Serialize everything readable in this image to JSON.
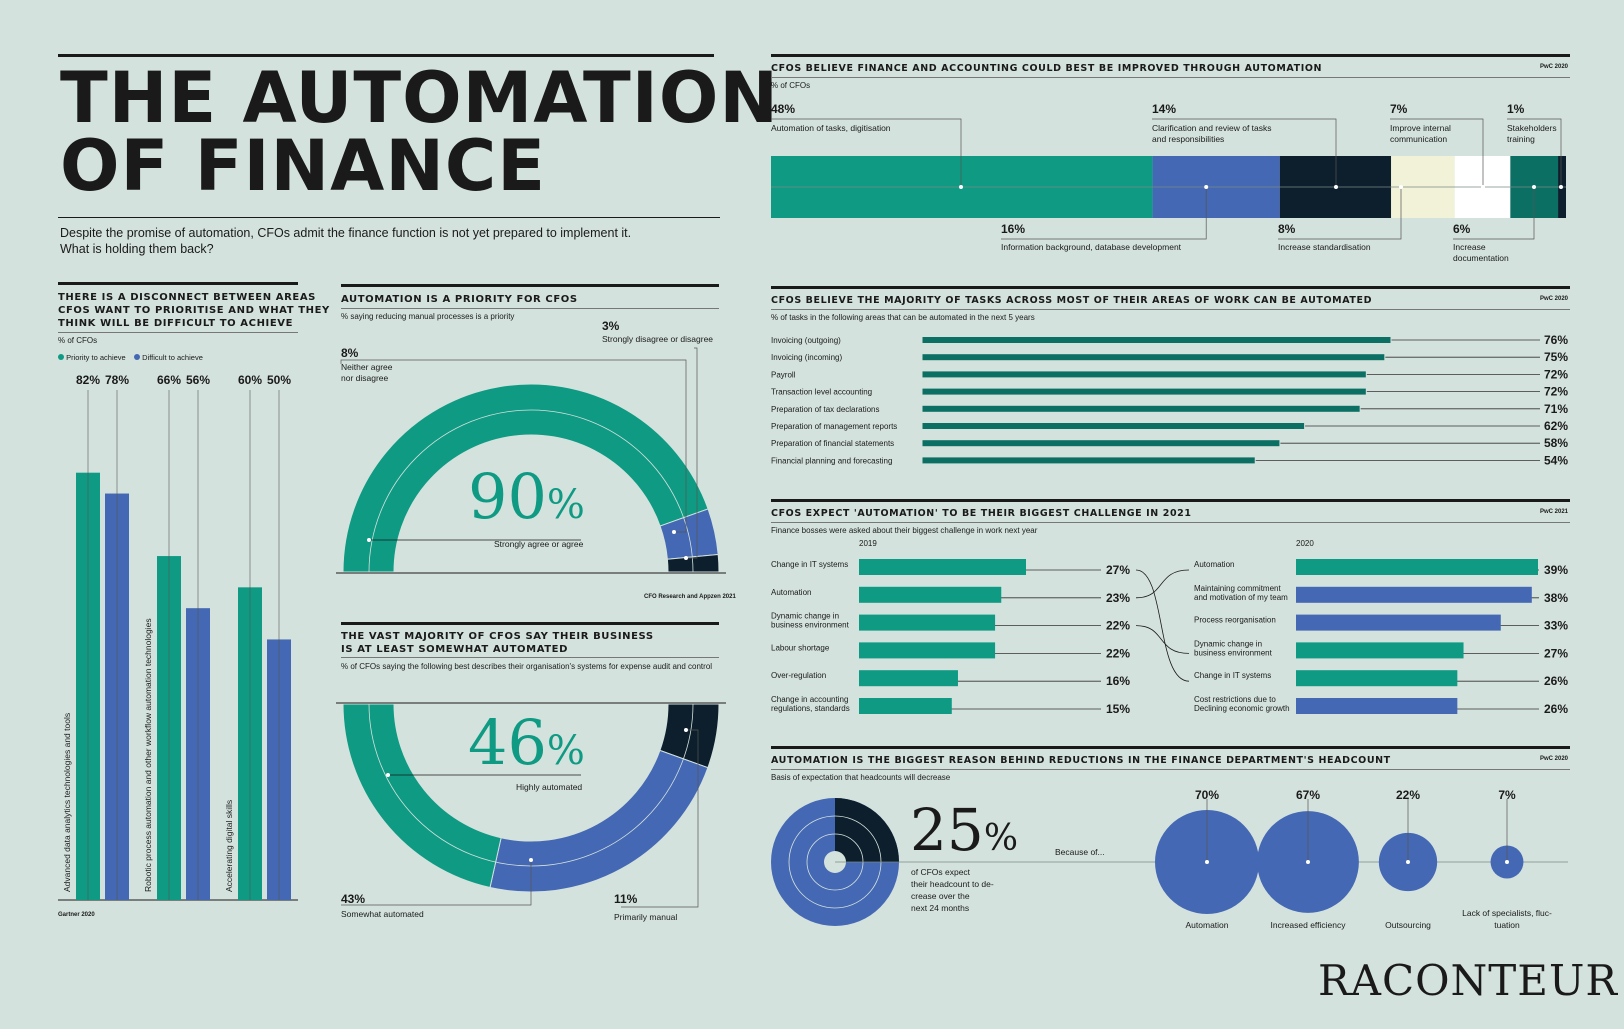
{
  "header": {
    "title_line1": "THE AUTOMATION",
    "title_line2": "OF FINANCE",
    "intro_line1": "Despite the promise of automation, CFOs admit the finance function is not yet prepared to implement it.",
    "intro_line2": "What is holding them back?"
  },
  "colors": {
    "teal": "#0e9a83",
    "blue": "#4468b3",
    "navy": "#0d1f2d",
    "cream": "#f2f2d8",
    "white": "#ffffff",
    "darkteal": "#0b6f63",
    "bg": "#d4e2dd"
  },
  "chart_data": [
    {
      "id": "disconnect",
      "type": "bar",
      "title_line1": "THERE IS A DISCONNECT BETWEEN AREAS",
      "title_line2": "CFOS WANT TO PRIORITISE AND WHAT THEY",
      "title_line3": "THINK WILL BE DIFFICULT TO ACHIEVE",
      "subtitle": "% of CFOs",
      "legend": [
        "Priority to achieve",
        "Difficult to achieve"
      ],
      "categories": [
        "Advanced data analytics technologies and tools",
        "Robotic process automation and other workflow automation technologies",
        "Accelerating digital skills"
      ],
      "series": [
        {
          "name": "Priority to achieve",
          "values": [
            82,
            66,
            60
          ]
        },
        {
          "name": "Difficult to achieve",
          "values": [
            78,
            56,
            50
          ]
        }
      ],
      "labels": [
        "82%",
        "78%",
        "66%",
        "56%",
        "60%",
        "50%"
      ],
      "source": "Gartner 2020"
    },
    {
      "id": "priority",
      "type": "pie",
      "title": "AUTOMATION IS A PRIORITY FOR CFOs",
      "subtitle": "% saying reducing manual processes is a priority",
      "slices": [
        {
          "label": "Strongly agree or agree",
          "value": 90
        },
        {
          "label": "Neither agree nor disagree",
          "value": 8
        },
        {
          "label": "Strongly disagree or disagree",
          "value": 3
        }
      ],
      "big_value": "90",
      "big_unit": "%",
      "big_label": "Strongly agree or agree",
      "neither_pct": "8%",
      "neither_l1": "Neither agree",
      "neither_l2": "nor disagree",
      "disagree_pct": "3%",
      "disagree_label": "Strongly disagree or disagree",
      "source": "CFO Research and Appzen 2021"
    },
    {
      "id": "automated",
      "type": "pie",
      "title_line1": "THE VAST MAJORITY OF CFOs SAY THEIR BUSINESS",
      "title_line2": "IS AT LEAST SOMEWHAT AUTOMATED",
      "subtitle": "% of CFOs saying the following best describes their organisation's systems for expense audit and control",
      "slices": [
        {
          "label": "Highly automated",
          "value": 46
        },
        {
          "label": "Somewhat automated",
          "value": 43
        },
        {
          "label": "Primarily manual",
          "value": 11
        }
      ],
      "big_value": "46",
      "big_unit": "%",
      "big_label": "Highly automated",
      "somewhat_pct": "43%",
      "somewhat_label": "Somewhat automated",
      "manual_pct": "11%",
      "manual_label": "Primarily manual"
    },
    {
      "id": "improved",
      "type": "bar",
      "title": "CFOs BELIEVE FINANCE AND ACCOUNTING COULD BEST BE IMPROVED THROUGH AUTOMATION",
      "subtitle": "% of CFOs",
      "source": "PwC 2020",
      "segments": [
        {
          "label": "Automation of tasks, digitisation",
          "value": 48,
          "text": "48%"
        },
        {
          "label": "Information background, database development",
          "value": 16,
          "text": "16%"
        },
        {
          "label": "Clarification and review of tasks and responsibilities",
          "value": 14,
          "text": "14%"
        },
        {
          "label": "Increase standardisation",
          "value": 8,
          "text": "8%"
        },
        {
          "label": "Improve internal communication",
          "value": 7,
          "text": "7%"
        },
        {
          "label": "Increase documentation",
          "value": 6,
          "text": "6%"
        },
        {
          "label": "Stakeholders training",
          "value": 1,
          "text": "1%"
        }
      ],
      "l_clar1": "Clarification and review of tasks",
      "l_clar2": "and responsibilities",
      "l_impr1": "Improve internal",
      "l_impr2": "communication",
      "l_stak1": "Stakeholders",
      "l_stak2": "training",
      "l_doc1": "Increase",
      "l_doc2": "documentation"
    },
    {
      "id": "tasks",
      "type": "bar",
      "title": "CFOs BELIEVE THE MAJORITY OF TASKS ACROSS MOST OF THEIR AREAS OF WORK CAN BE AUTOMATED",
      "subtitle": "% of tasks in the following areas that can be automated in the next 5 years",
      "source": "PwC 2020",
      "categories": [
        "Invoicing (outgoing)",
        "Invoicing (incoming)",
        "Payroll",
        "Transaction level accounting",
        "Preparation of tax declarations",
        "Preparation of  management reports",
        "Preparation of financial statements",
        "Financial planning and forecasting"
      ],
      "values": [
        76,
        75,
        72,
        72,
        71,
        62,
        58,
        54
      ],
      "labels": [
        "76%",
        "75%",
        "72%",
        "72%",
        "71%",
        "62%",
        "58%",
        "54%"
      ]
    },
    {
      "id": "challenge",
      "type": "bar",
      "title": "CFOs EXPECT 'AUTOMATION' TO BE THEIR BIGGEST CHALLENGE IN 2021",
      "subtitle": "Finance bosses were asked about their biggest challenge in work next year",
      "source": "PwC 2021",
      "year1": "2019",
      "year2": "2020",
      "left": [
        {
          "label": "Change in IT systems",
          "value": 27,
          "text": "27%"
        },
        {
          "label": "Automation",
          "value": 23,
          "text": "23%"
        },
        {
          "l1": "Dynamic change in",
          "l2": "business environment",
          "value": 22,
          "text": "22%"
        },
        {
          "label": "Labour shortage",
          "value": 22,
          "text": "22%"
        },
        {
          "label": "Over-regulation",
          "value": 16,
          "text": "16%"
        },
        {
          "l1": "Change in accounting",
          "l2": "regulations, standards",
          "value": 15,
          "text": "15%"
        }
      ],
      "right": [
        {
          "label": "Automation",
          "value": 39,
          "text": "39%",
          "color": "teal"
        },
        {
          "l1": "Maintaining commitment",
          "l2": "and motivation of my team",
          "value": 38,
          "text": "38%",
          "color": "blue"
        },
        {
          "label": "Process reorganisation",
          "value": 33,
          "text": "33%",
          "color": "blue"
        },
        {
          "l1": "Dynamic change in",
          "l2": "business environment",
          "value": 27,
          "text": "27%",
          "color": "teal"
        },
        {
          "label": "Change in IT systems",
          "value": 26,
          "text": "26%",
          "color": "teal"
        },
        {
          "l1": "Cost restrictions due to",
          "l2": "Declining economic growth",
          "value": 26,
          "text": "26%",
          "color": "blue"
        }
      ]
    },
    {
      "id": "headcount",
      "type": "scatter",
      "title": "AUTOMATION IS THE BIGGEST REASON BEHIND REDUCTIONS IN THE FINANCE DEPARTMENT'S HEADCOUNT",
      "subtitle": "Basis of expectation that headcounts will decrease",
      "source": "PwC 2020",
      "big_value": "25",
      "big_unit": "%",
      "big_value_num": 25,
      "desc1": "of CFOs expect",
      "desc2": "their headcount to de-",
      "desc3": "crease over the",
      "desc4": "next 24 months",
      "because": "Because of...",
      "reasons": [
        {
          "label": "Automation",
          "value": 70,
          "text": "70%"
        },
        {
          "label": "Increased efficiency",
          "value": 67,
          "text": "67%"
        },
        {
          "label": "Outsourcing",
          "value": 22,
          "text": "22%"
        },
        {
          "l1": "Lack of specialists, fluc-",
          "l2": "tuation",
          "value": 7,
          "text": "7%"
        }
      ]
    }
  ],
  "brand": "RACONTEUR"
}
